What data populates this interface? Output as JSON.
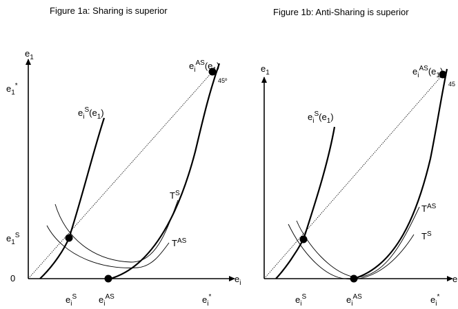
{
  "panels": [
    {
      "id": "a",
      "caption": "Figure 1a: Sharing is superior",
      "y_axis_label": {
        "base": "e",
        "sub": "1"
      },
      "x_axis_label": {
        "base": "e",
        "sub": "i"
      },
      "y_tick_estar": {
        "base": "e",
        "sub": "1",
        "sup": "*"
      },
      "y_tick_es": {
        "base": "e",
        "sub": "1",
        "sup": "S"
      },
      "y_tick_zero": "0",
      "x_tick_es": {
        "base": "e",
        "sub": "i",
        "sup": "S"
      },
      "x_tick_eas": {
        "base": "e",
        "sub": "i",
        "sup": "AS"
      },
      "x_tick_estar": {
        "base": "e",
        "sub": "i",
        "sup": "*"
      },
      "curve_s_label": {
        "base": "e",
        "sub": "i",
        "sup": "S",
        "arg_base": "e",
        "arg_sub": "1"
      },
      "curve_as_label": {
        "base": "e",
        "sub": "i",
        "sup": "AS",
        "arg_base": "e",
        "arg_sub": "1"
      },
      "angle_label": "45º",
      "ts_label": {
        "base": "T",
        "sup": "S"
      },
      "tas_label": {
        "base": "T",
        "sup": "AS"
      }
    },
    {
      "id": "b",
      "caption": "Figure 1b: Anti-Sharing is superior",
      "y_axis_label": {
        "base": "e",
        "sub": "1"
      },
      "x_axis_label": {
        "base": "e",
        "sub": ""
      },
      "x_tick_es": {
        "base": "e",
        "sub": "i",
        "sup": "S"
      },
      "x_tick_eas": {
        "base": "e",
        "sub": "i",
        "sup": "AS"
      },
      "x_tick_estar": {
        "base": "e",
        "sub": "i",
        "sup": "*"
      },
      "curve_s_label": {
        "base": "e",
        "sub": "i",
        "sup": "S",
        "arg_base": "e",
        "arg_sub": "1"
      },
      "curve_as_label": {
        "base": "e",
        "sub": "i",
        "sup": "AS",
        "arg_base": "e",
        "arg_sub": "1"
      },
      "angle_label": "45",
      "ts_label": {
        "base": "T",
        "sup": "S"
      },
      "tas_label": {
        "base": "T",
        "sup": "AS"
      }
    }
  ],
  "colors": {
    "line": "#000000",
    "dot": "#000000",
    "background": "#ffffff"
  }
}
